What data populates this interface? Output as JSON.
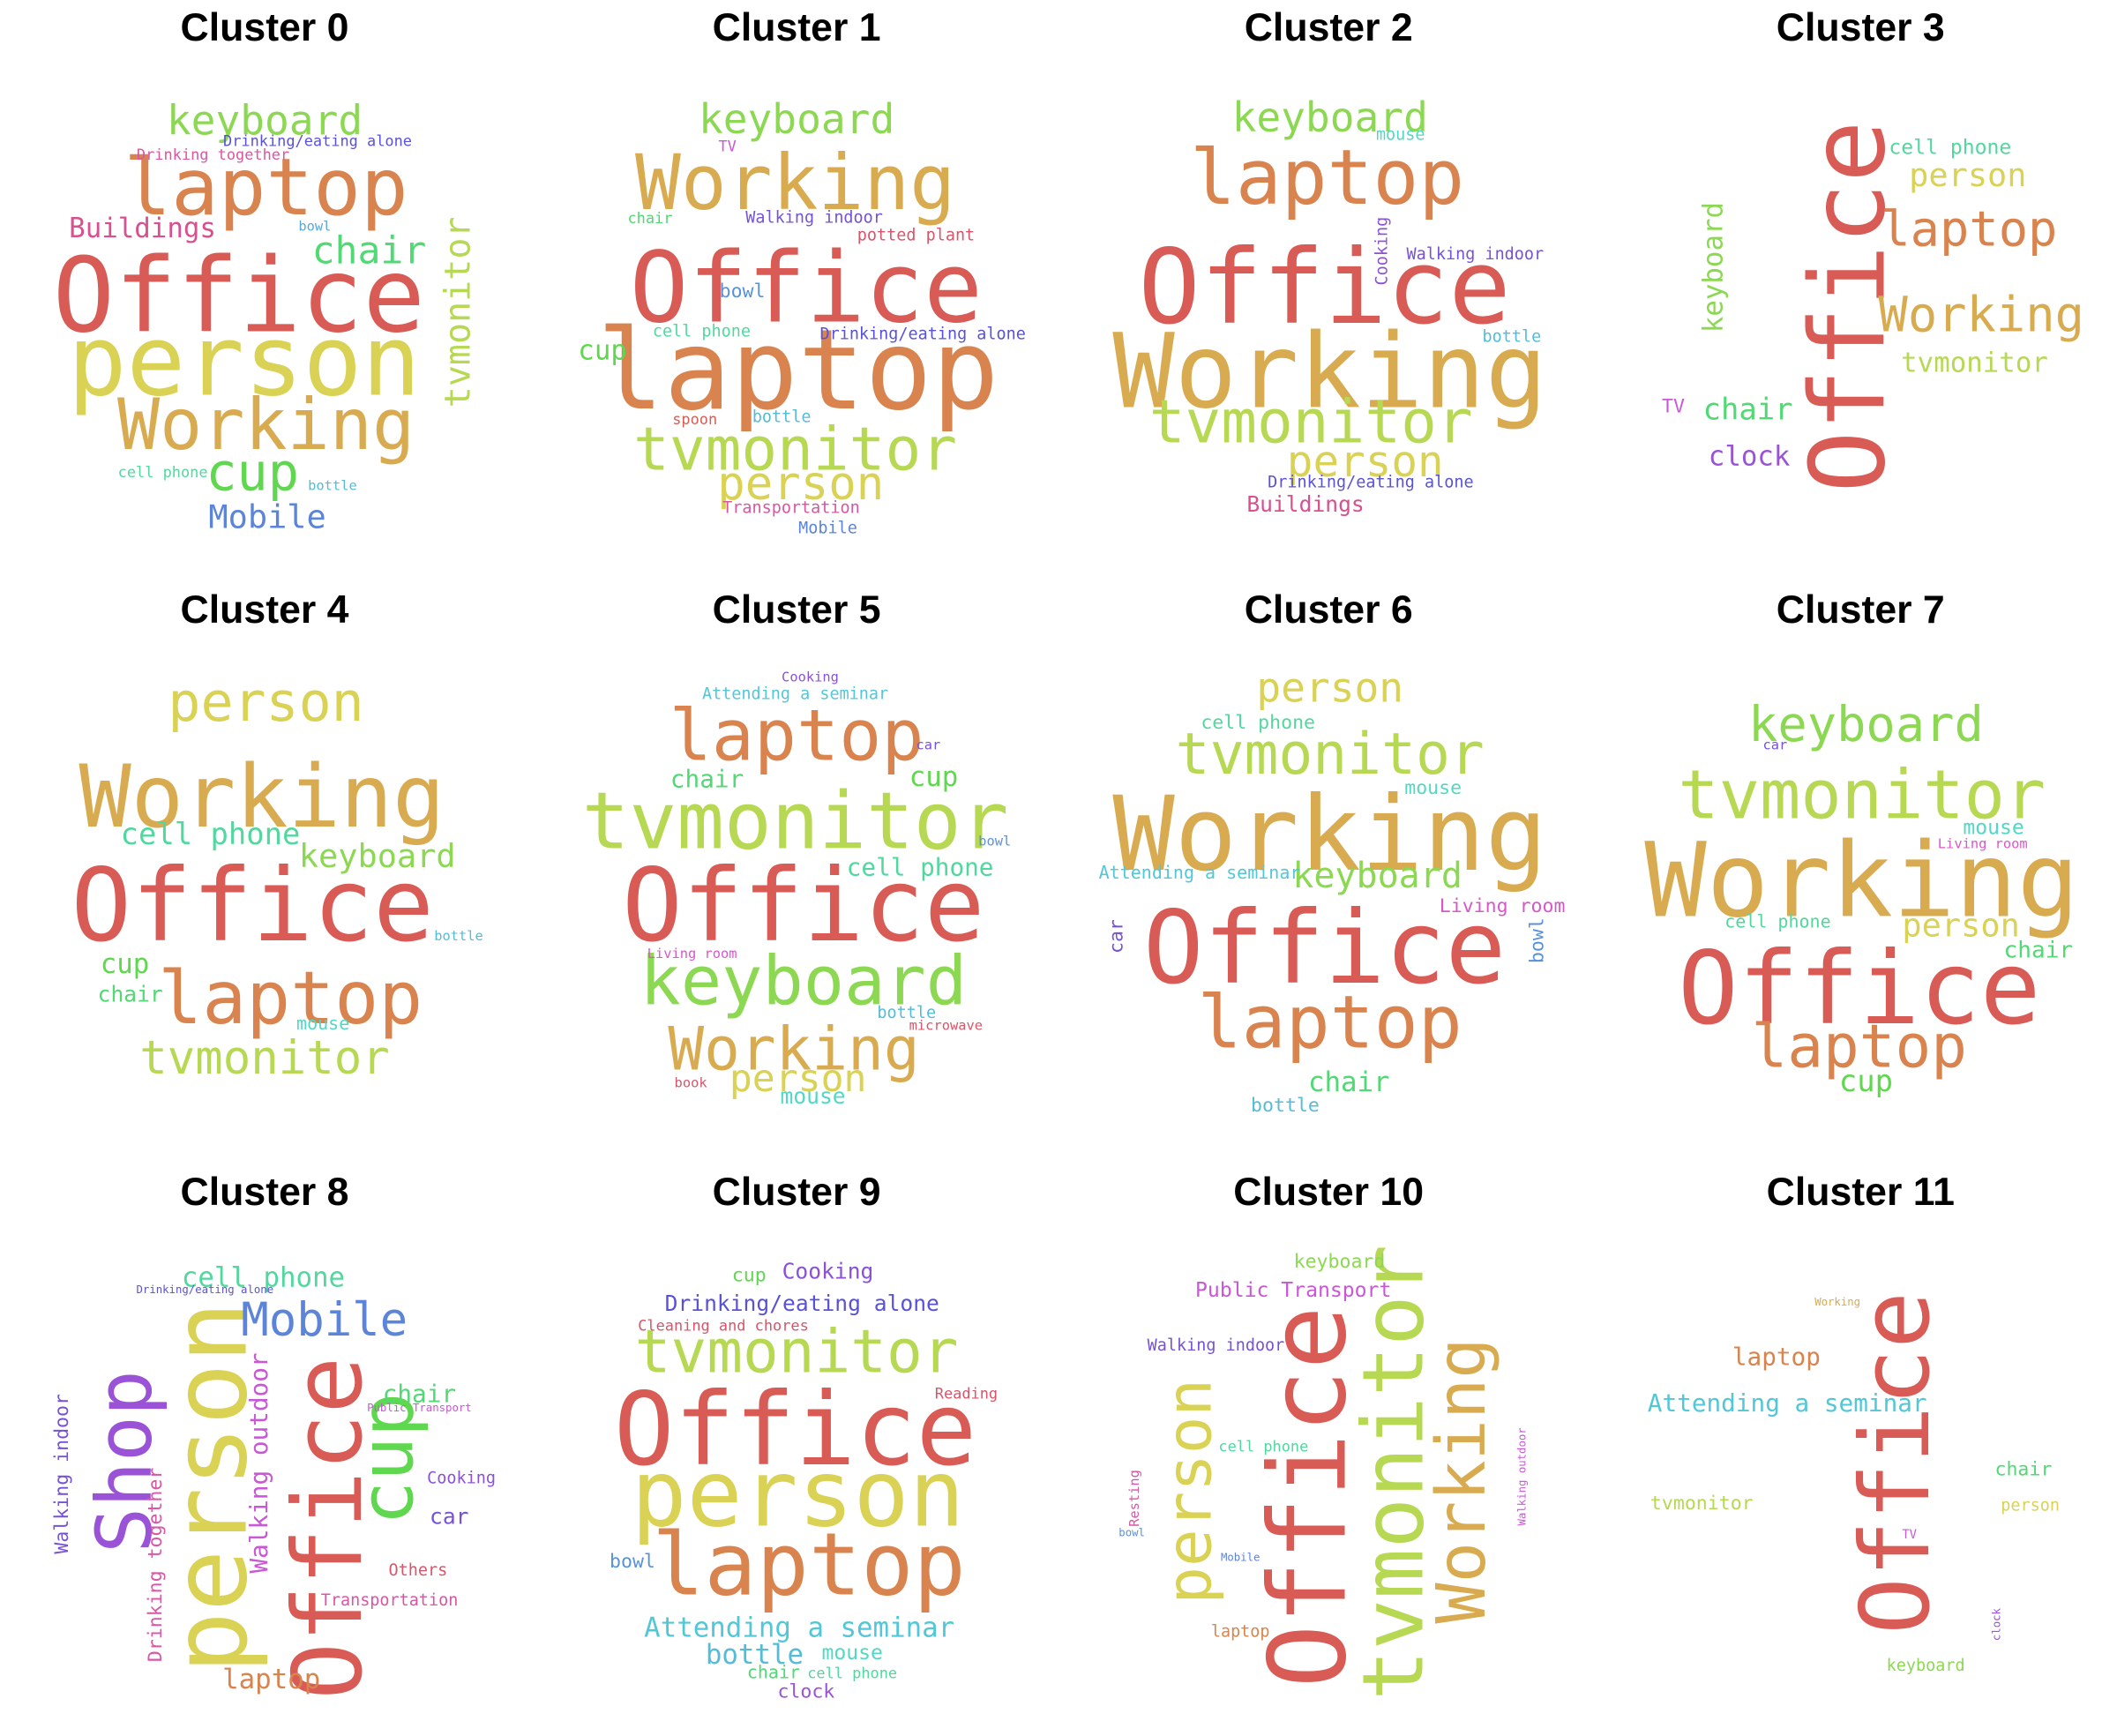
{
  "figure": {
    "panels": [
      {
        "title": "Cluster 0",
        "words": [
          {
            "text": "Office",
            "color": "#d85b55"
          },
          {
            "text": "person",
            "color": "#d9d254"
          },
          {
            "text": "laptop",
            "color": "#d9844f"
          },
          {
            "text": "Working",
            "color": "#d9ab50"
          },
          {
            "text": "keyboard",
            "color": "#8cd852"
          },
          {
            "text": "chair",
            "color": "#52d874"
          },
          {
            "text": "cup",
            "color": "#5fd74e"
          },
          {
            "text": "tvmonitor",
            "color": "#b6d853"
          },
          {
            "text": "Buildings",
            "color": "#d8508f"
          },
          {
            "text": "Mobile",
            "color": "#5c84d8"
          },
          {
            "text": "Drinking/eating alone",
            "color": "#5a52d6"
          },
          {
            "text": "Drinking together",
            "color": "#d957a3"
          },
          {
            "text": "bowl",
            "color": "#5aa6d8"
          },
          {
            "text": "cell phone",
            "color": "#52d89f"
          },
          {
            "text": "bottle",
            "color": "#55bcd8"
          }
        ]
      },
      {
        "title": "Cluster 1",
        "words": [
          {
            "text": "Office",
            "color": "#d85b55"
          },
          {
            "text": "laptop",
            "color": "#d9844f"
          },
          {
            "text": "Working",
            "color": "#d9ab50"
          },
          {
            "text": "tvmonitor",
            "color": "#b6d853"
          },
          {
            "text": "person",
            "color": "#d9d254"
          },
          {
            "text": "keyboard",
            "color": "#8cd852"
          },
          {
            "text": "TV",
            "color": "#c95ad6"
          },
          {
            "text": "chair",
            "color": "#52d874"
          },
          {
            "text": "Walking indoor",
            "color": "#7552d6"
          },
          {
            "text": "potted plant",
            "color": "#d8556a"
          },
          {
            "text": "bowl",
            "color": "#5a92d8"
          },
          {
            "text": "cell phone",
            "color": "#52d89f"
          },
          {
            "text": "Drinking/eating alone",
            "color": "#5a52d6"
          },
          {
            "text": "cup",
            "color": "#5fd74e"
          },
          {
            "text": "spoon",
            "color": "#d85e55"
          },
          {
            "text": "bottle",
            "color": "#55bcd8"
          },
          {
            "text": "Transportation",
            "color": "#d857a3"
          },
          {
            "text": "Mobile",
            "color": "#5c84d8"
          }
        ]
      },
      {
        "title": "Cluster 2",
        "words": [
          {
            "text": "Office",
            "color": "#d85b55"
          },
          {
            "text": "Working",
            "color": "#d9ab50"
          },
          {
            "text": "laptop",
            "color": "#d9844f"
          },
          {
            "text": "tvmonitor",
            "color": "#b6d853"
          },
          {
            "text": "person",
            "color": "#d9d254"
          },
          {
            "text": "keyboard",
            "color": "#8cd852"
          },
          {
            "text": "mouse",
            "color": "#52d8c4"
          },
          {
            "text": "Cooking",
            "color": "#8a52d6"
          },
          {
            "text": "Walking indoor",
            "color": "#7552d6"
          },
          {
            "text": "bottle",
            "color": "#55bcd8"
          },
          {
            "text": "Drinking/eating alone",
            "color": "#5a52d6"
          },
          {
            "text": "Buildings",
            "color": "#d8508f"
          }
        ]
      },
      {
        "title": "Cluster 3",
        "words": [
          {
            "text": "Office",
            "color": "#d85b55"
          },
          {
            "text": "cell phone",
            "color": "#52d89f"
          },
          {
            "text": "person",
            "color": "#d9d254"
          },
          {
            "text": "laptop",
            "color": "#d9844f"
          },
          {
            "text": "keyboard",
            "color": "#8cd852"
          },
          {
            "text": "Working",
            "color": "#d9ab50"
          },
          {
            "text": "tvmonitor",
            "color": "#b6d853"
          },
          {
            "text": "TV",
            "color": "#c95ad6"
          },
          {
            "text": "chair",
            "color": "#52d874"
          },
          {
            "text": "clock",
            "color": "#9a52d6"
          }
        ]
      },
      {
        "title": "Cluster 4",
        "words": [
          {
            "text": "Office",
            "color": "#d85b55"
          },
          {
            "text": "Working",
            "color": "#d9ab50"
          },
          {
            "text": "laptop",
            "color": "#d9844f"
          },
          {
            "text": "person",
            "color": "#d9d254"
          },
          {
            "text": "tvmonitor",
            "color": "#b6d853"
          },
          {
            "text": "cell phone",
            "color": "#52d89f"
          },
          {
            "text": "keyboard",
            "color": "#8cd852"
          },
          {
            "text": "cup",
            "color": "#5fd74e"
          },
          {
            "text": "chair",
            "color": "#52d874"
          },
          {
            "text": "bottle",
            "color": "#55bcd8"
          },
          {
            "text": "mouse",
            "color": "#52d8c4"
          }
        ]
      },
      {
        "title": "Cluster 5",
        "words": [
          {
            "text": "Office",
            "color": "#d85b55"
          },
          {
            "text": "tvmonitor",
            "color": "#b6d853"
          },
          {
            "text": "keyboard",
            "color": "#8cd852"
          },
          {
            "text": "laptop",
            "color": "#d9844f"
          },
          {
            "text": "Working",
            "color": "#d9ab50"
          },
          {
            "text": "person",
            "color": "#d9d254"
          },
          {
            "text": "Cooking",
            "color": "#8a52d6"
          },
          {
            "text": "Attending a seminar",
            "color": "#52c7d8"
          },
          {
            "text": "car",
            "color": "#7552d6"
          },
          {
            "text": "chair",
            "color": "#52d874"
          },
          {
            "text": "cup",
            "color": "#5fd74e"
          },
          {
            "text": "bowl",
            "color": "#5a92d8"
          },
          {
            "text": "cell phone",
            "color": "#52d89f"
          },
          {
            "text": "Living room",
            "color": "#d957c8"
          },
          {
            "text": "bottle",
            "color": "#55bcd8"
          },
          {
            "text": "microwave",
            "color": "#d8556a"
          },
          {
            "text": "book",
            "color": "#d8556a"
          },
          {
            "text": "mouse",
            "color": "#52d8c4"
          }
        ]
      },
      {
        "title": "Cluster 6",
        "words": [
          {
            "text": "Office",
            "color": "#d85b55"
          },
          {
            "text": "Working",
            "color": "#d9ab50"
          },
          {
            "text": "laptop",
            "color": "#d9844f"
          },
          {
            "text": "tvmonitor",
            "color": "#b6d853"
          },
          {
            "text": "person",
            "color": "#d9d254"
          },
          {
            "text": "keyboard",
            "color": "#8cd852"
          },
          {
            "text": "cell phone",
            "color": "#52d89f"
          },
          {
            "text": "mouse",
            "color": "#52d8c4"
          },
          {
            "text": "Attending a seminar",
            "color": "#52c7d8"
          },
          {
            "text": "Living room",
            "color": "#d957c8"
          },
          {
            "text": "car",
            "color": "#7552d6"
          },
          {
            "text": "bowl",
            "color": "#5a92d8"
          },
          {
            "text": "chair",
            "color": "#52d874"
          },
          {
            "text": "bottle",
            "color": "#55bcd8"
          }
        ]
      },
      {
        "title": "Cluster 7",
        "words": [
          {
            "text": "Working",
            "color": "#d9ab50"
          },
          {
            "text": "Office",
            "color": "#d85b55"
          },
          {
            "text": "tvmonitor",
            "color": "#b6d853"
          },
          {
            "text": "keyboard",
            "color": "#8cd852"
          },
          {
            "text": "laptop",
            "color": "#d9844f"
          },
          {
            "text": "car",
            "color": "#7552d6"
          },
          {
            "text": "mouse",
            "color": "#52d8c4"
          },
          {
            "text": "Living room",
            "color": "#d957c8"
          },
          {
            "text": "cell phone",
            "color": "#52d89f"
          },
          {
            "text": "person",
            "color": "#d9d254"
          },
          {
            "text": "chair",
            "color": "#52d874"
          },
          {
            "text": "cup",
            "color": "#5fd74e"
          }
        ]
      },
      {
        "title": "Cluster 8",
        "words": [
          {
            "text": "person",
            "color": "#d9d254"
          },
          {
            "text": "Office",
            "color": "#d85b55"
          },
          {
            "text": "Shop",
            "color": "#9a52d6"
          },
          {
            "text": "cup",
            "color": "#5fd74e"
          },
          {
            "text": "Mobile",
            "color": "#5c84d8"
          },
          {
            "text": "cell phone",
            "color": "#52d89f"
          },
          {
            "text": "Drinking/eating alone",
            "color": "#5a52d6"
          },
          {
            "text": "Walking outdoor",
            "color": "#c957d6"
          },
          {
            "text": "Walking indoor",
            "color": "#7552d6"
          },
          {
            "text": "Drinking together",
            "color": "#d957a3"
          },
          {
            "text": "chair",
            "color": "#52d874"
          },
          {
            "text": "Public Transport",
            "color": "#c957d6"
          },
          {
            "text": "Cooking",
            "color": "#8a52d6"
          },
          {
            "text": "car",
            "color": "#7552d6"
          },
          {
            "text": "Others",
            "color": "#d8556a"
          },
          {
            "text": "Transportation",
            "color": "#d857a3"
          },
          {
            "text": "laptop",
            "color": "#d9844f"
          }
        ]
      },
      {
        "title": "Cluster 9",
        "words": [
          {
            "text": "Office",
            "color": "#d85b55"
          },
          {
            "text": "person",
            "color": "#d9d254"
          },
          {
            "text": "laptop",
            "color": "#d9844f"
          },
          {
            "text": "tvmonitor",
            "color": "#b6d853"
          },
          {
            "text": "cup",
            "color": "#5fd74e"
          },
          {
            "text": "Cooking",
            "color": "#8a52d6"
          },
          {
            "text": "Drinking/eating alone",
            "color": "#5a52d6"
          },
          {
            "text": "Cleaning and chores",
            "color": "#d8556a"
          },
          {
            "text": "Reading",
            "color": "#d8556a"
          },
          {
            "text": "bowl",
            "color": "#5a92d8"
          },
          {
            "text": "Attending a seminar",
            "color": "#52c7d8"
          },
          {
            "text": "bottle",
            "color": "#55bcd8"
          },
          {
            "text": "mouse",
            "color": "#52d8c4"
          },
          {
            "text": "chair",
            "color": "#52d874"
          },
          {
            "text": "cell phone",
            "color": "#52d89f"
          },
          {
            "text": "clock",
            "color": "#9a52d6"
          }
        ]
      },
      {
        "title": "Cluster 10",
        "words": [
          {
            "text": "Office",
            "color": "#d85b55"
          },
          {
            "text": "tvmonitor",
            "color": "#b6d853"
          },
          {
            "text": "Working",
            "color": "#d9ab50"
          },
          {
            "text": "person",
            "color": "#d9d254"
          },
          {
            "text": "keyboard",
            "color": "#8cd852"
          },
          {
            "text": "Public Transport",
            "color": "#c957d6"
          },
          {
            "text": "Walking indoor",
            "color": "#7552d6"
          },
          {
            "text": "cell phone",
            "color": "#52d89f"
          },
          {
            "text": "Resting",
            "color": "#d957a3"
          },
          {
            "text": "bowl",
            "color": "#5a92d8"
          },
          {
            "text": "Mobile",
            "color": "#5c84d8"
          },
          {
            "text": "laptop",
            "color": "#d9844f"
          },
          {
            "text": "Walking outdoor",
            "color": "#c957d6"
          }
        ]
      },
      {
        "title": "Cluster 11",
        "words": [
          {
            "text": "Office",
            "color": "#d85b55"
          },
          {
            "text": "Working",
            "color": "#d9ab50"
          },
          {
            "text": "laptop",
            "color": "#d9844f"
          },
          {
            "text": "Attending a seminar",
            "color": "#52c7d8"
          },
          {
            "text": "chair",
            "color": "#52d874"
          },
          {
            "text": "tvmonitor",
            "color": "#b6d853"
          },
          {
            "text": "person",
            "color": "#d9d254"
          },
          {
            "text": "TV",
            "color": "#c95ad6"
          },
          {
            "text": "clock",
            "color": "#9a52d6"
          },
          {
            "text": "keyboard",
            "color": "#8cd852"
          }
        ]
      }
    ]
  }
}
